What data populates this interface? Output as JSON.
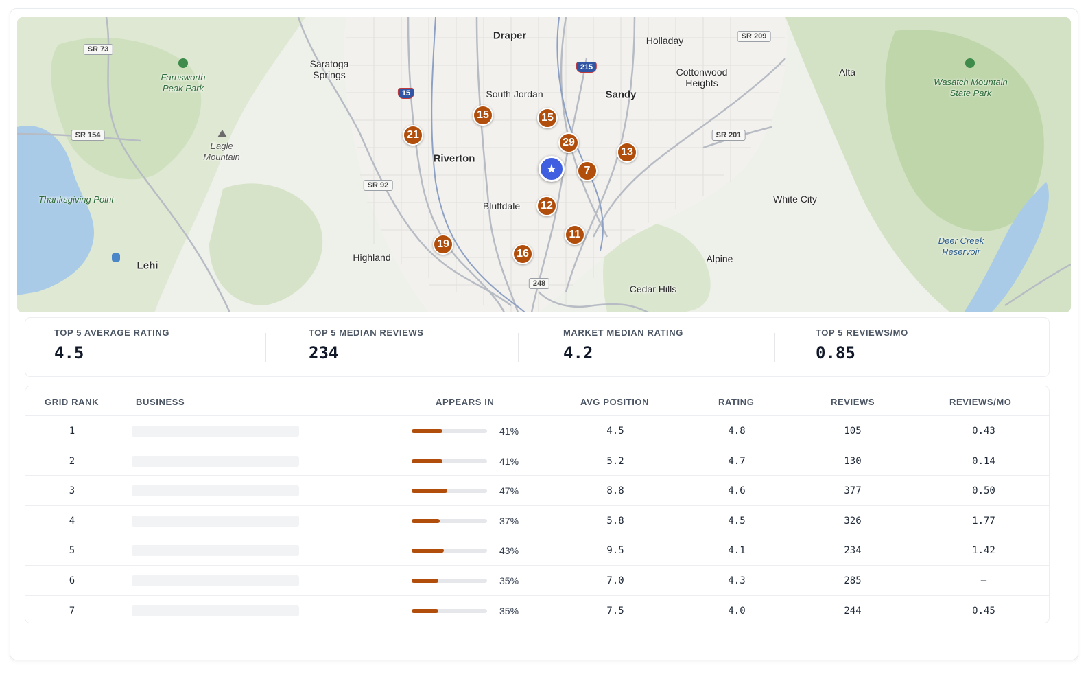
{
  "map": {
    "cities": [
      {
        "name": "Draper",
        "kind": "city"
      },
      {
        "name": "Holladay",
        "kind": "town"
      },
      {
        "name": "South Jordan",
        "kind": "town"
      },
      {
        "name": "Sandy",
        "kind": "city"
      },
      {
        "name": "Riverton",
        "kind": "city"
      },
      {
        "name": "Bluffdale",
        "kind": "town"
      },
      {
        "name": "Highland",
        "kind": "town"
      },
      {
        "name": "Lehi",
        "kind": "city"
      },
      {
        "name": "White City",
        "kind": "town"
      },
      {
        "name": "Alpine",
        "kind": "town"
      },
      {
        "name": "Cedar Hills",
        "kind": "town"
      },
      {
        "name": "Alta",
        "kind": "town"
      },
      {
        "name": "Saratoga Springs",
        "kind": "town"
      },
      {
        "name": "Cottonwood Heights",
        "kind": "town"
      }
    ],
    "features": [
      {
        "name": "Farnsworth Peak Park",
        "kind": "park"
      },
      {
        "name": "Wasatch Mountain State Park",
        "kind": "park"
      },
      {
        "name": "Eagle Mountain",
        "kind": "mtn"
      },
      {
        "name": "Thanksgiving Point",
        "kind": "park"
      },
      {
        "name": "Deer Creek Reservoir",
        "kind": "water"
      }
    ],
    "road_shields": [
      "SR 73",
      "SR 154",
      "SR 92",
      "248",
      "SR 201",
      "SR 209"
    ],
    "interstates": [
      "15",
      "215"
    ],
    "rank_pins": [
      "15",
      "15",
      "21",
      "29",
      "13",
      "7",
      "12",
      "11",
      "19",
      "16"
    ],
    "center_marker_icon": "star-icon",
    "colors": {
      "pin": "#b24e0c",
      "center": "#3f5fe0"
    }
  },
  "stats": [
    {
      "label": "TOP 5 AVERAGE RATING",
      "value": "4.5"
    },
    {
      "label": "TOP 5 MEDIAN REVIEWS",
      "value": "234"
    },
    {
      "label": "MARKET MEDIAN RATING",
      "value": "4.2"
    },
    {
      "label": "TOP 5 REVIEWS/MO",
      "value": "0.85"
    }
  ],
  "table": {
    "headers": [
      "GRID RANK",
      "BUSINESS",
      "APPEARS IN",
      "AVG POSITION",
      "RATING",
      "REVIEWS",
      "REVIEWS/MO"
    ],
    "rows": [
      {
        "rank": "1",
        "appears_pct": 41,
        "appears": "41%",
        "avg_position": "4.5",
        "rating": "4.8",
        "reviews": "105",
        "reviews_mo": "0.43"
      },
      {
        "rank": "2",
        "appears_pct": 41,
        "appears": "41%",
        "avg_position": "5.2",
        "rating": "4.7",
        "reviews": "130",
        "reviews_mo": "0.14"
      },
      {
        "rank": "3",
        "appears_pct": 47,
        "appears": "47%",
        "avg_position": "8.8",
        "rating": "4.6",
        "reviews": "377",
        "reviews_mo": "0.50"
      },
      {
        "rank": "4",
        "appears_pct": 37,
        "appears": "37%",
        "avg_position": "5.8",
        "rating": "4.5",
        "reviews": "326",
        "reviews_mo": "1.77"
      },
      {
        "rank": "5",
        "appears_pct": 43,
        "appears": "43%",
        "avg_position": "9.5",
        "rating": "4.1",
        "reviews": "234",
        "reviews_mo": "1.42"
      },
      {
        "rank": "6",
        "appears_pct": 35,
        "appears": "35%",
        "avg_position": "7.0",
        "rating": "4.3",
        "reviews": "285",
        "reviews_mo": "—"
      },
      {
        "rank": "7",
        "appears_pct": 35,
        "appears": "35%",
        "avg_position": "7.5",
        "rating": "4.0",
        "reviews": "244",
        "reviews_mo": "0.45"
      }
    ]
  }
}
